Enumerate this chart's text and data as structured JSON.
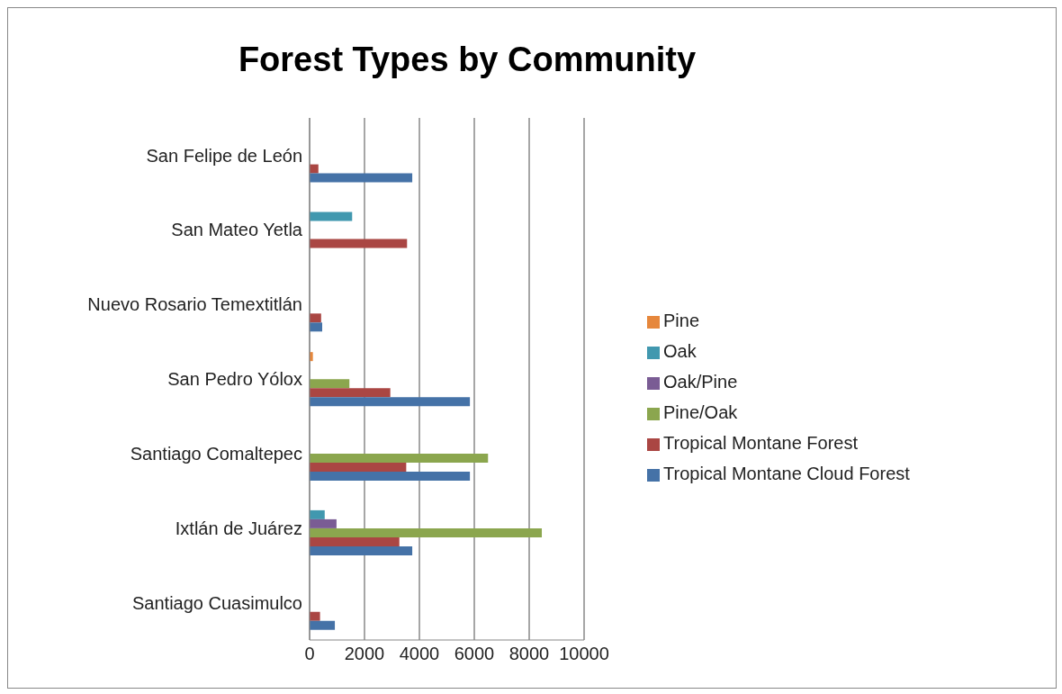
{
  "chart_data": {
    "type": "bar",
    "orientation": "horizontal",
    "title": "Forest Types by Community",
    "categories": [
      "San Felipe de León",
      "San Mateo Yetla",
      "Nuevo Rosario Temextitlán",
      "San Pedro Yólox",
      "Santiago Comaltepec",
      "Ixtlán de Juárez",
      "Santiago Cuasimulco"
    ],
    "series": [
      {
        "name": "Pine",
        "color": "#e6873c",
        "values": [
          null,
          null,
          null,
          120,
          null,
          null,
          null
        ]
      },
      {
        "name": "Oak",
        "color": "#4198af",
        "values": [
          null,
          1550,
          null,
          null,
          null,
          550,
          null
        ]
      },
      {
        "name": "Oak/Pine",
        "color": "#7a5c94",
        "values": [
          null,
          null,
          null,
          null,
          null,
          980,
          null
        ]
      },
      {
        "name": "Pine/Oak",
        "color": "#8ba64e",
        "values": [
          null,
          null,
          null,
          1450,
          6500,
          8460,
          null
        ]
      },
      {
        "name": "Tropical Montane Forest",
        "color": "#aa4643",
        "values": [
          320,
          3550,
          420,
          2940,
          3520,
          3270,
          380
        ]
      },
      {
        "name": "Tropical Montane Cloud Forest",
        "color": "#4572a7",
        "values": [
          3740,
          null,
          460,
          5840,
          5840,
          3740,
          920
        ]
      }
    ],
    "xlim": [
      0,
      10000
    ],
    "xticks": [
      0,
      2000,
      4000,
      6000,
      8000,
      10000
    ],
    "grid": "x",
    "legend": "right"
  }
}
